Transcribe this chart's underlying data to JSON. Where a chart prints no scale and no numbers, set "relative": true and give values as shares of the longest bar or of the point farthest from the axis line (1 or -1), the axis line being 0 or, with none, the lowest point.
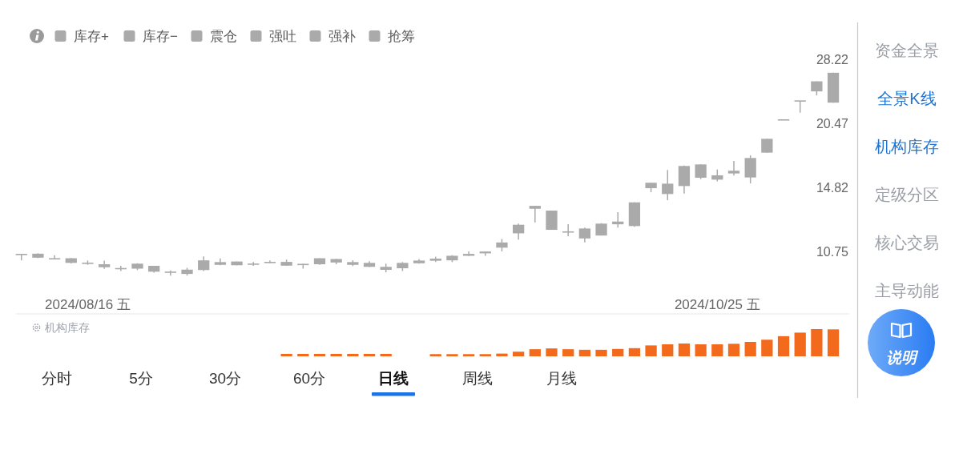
{
  "chart_data": [
    {
      "type": "candlestick",
      "color": "#aaaaaa",
      "log": "y",
      "ylim": [
        7.85,
        34.1
      ],
      "yticks": [
        10.75,
        14.82,
        20.47,
        28.22
      ],
      "categories": [
        null,
        null,
        null,
        null,
        "2024/08/16 五",
        null,
        null,
        null,
        null,
        null,
        null,
        null,
        null,
        null,
        null,
        null,
        null,
        null,
        null,
        null,
        null,
        null,
        null,
        null,
        null,
        null,
        null,
        null,
        null,
        null,
        null,
        null,
        null,
        null,
        null,
        null,
        null,
        null,
        null,
        null,
        null,
        null,
        "2024/10/25 五",
        null,
        null,
        null,
        null,
        null,
        null,
        null
      ],
      "ohlc": [
        [
          10.58,
          10.62,
          10.28,
          10.6
        ],
        [
          10.42,
          10.65,
          10.4,
          10.63
        ],
        [
          10.34,
          10.55,
          10.33,
          10.38
        ],
        [
          10.15,
          10.4,
          10.12,
          10.39
        ],
        [
          10.11,
          10.27,
          10.05,
          10.15
        ],
        [
          9.93,
          10.27,
          9.85,
          10.08
        ],
        [
          9.84,
          10.0,
          9.74,
          9.88
        ],
        [
          9.86,
          10.13,
          9.79,
          10.11
        ],
        [
          9.71,
          10.0,
          9.66,
          10.0
        ],
        [
          9.66,
          9.77,
          9.52,
          9.71
        ],
        [
          9.6,
          9.9,
          9.52,
          9.81
        ],
        [
          9.79,
          10.49,
          9.74,
          10.28
        ],
        [
          10.05,
          10.38,
          10.03,
          10.19
        ],
        [
          10.03,
          10.22,
          10.03,
          10.22
        ],
        [
          10.06,
          10.2,
          10.0,
          10.11
        ],
        [
          10.15,
          10.28,
          10.13,
          10.19
        ],
        [
          10.01,
          10.32,
          10.0,
          10.2
        ],
        [
          10.06,
          10.1,
          9.86,
          10.08
        ],
        [
          10.08,
          10.39,
          10.05,
          10.39
        ],
        [
          10.17,
          10.36,
          10.08,
          10.35
        ],
        [
          10.05,
          10.28,
          9.99,
          10.19
        ],
        [
          9.95,
          10.23,
          9.94,
          10.15
        ],
        [
          9.8,
          10.11,
          9.68,
          9.95
        ],
        [
          9.88,
          10.19,
          9.74,
          10.15
        ],
        [
          10.13,
          10.35,
          10.11,
          10.27
        ],
        [
          10.26,
          10.47,
          10.2,
          10.37
        ],
        [
          10.28,
          10.55,
          10.19,
          10.52
        ],
        [
          10.52,
          10.75,
          10.51,
          10.62
        ],
        [
          10.65,
          10.75,
          10.52,
          10.75
        ],
        [
          10.96,
          11.45,
          10.75,
          11.25
        ],
        [
          11.78,
          12.37,
          11.41,
          12.3
        ],
        [
          13.33,
          13.53,
          12.45,
          13.53
        ],
        [
          11.99,
          13.21,
          11.99,
          13.21
        ],
        [
          11.83,
          12.33,
          11.61,
          11.89
        ],
        [
          11.48,
          12.13,
          11.25,
          12.07
        ],
        [
          11.65,
          12.4,
          11.65,
          12.37
        ],
        [
          12.33,
          13.1,
          12.12,
          12.5
        ],
        [
          12.22,
          13.77,
          12.17,
          13.77
        ],
        [
          14.79,
          15.2,
          14.49,
          15.2
        ],
        [
          14.36,
          16.21,
          13.92,
          15.13
        ],
        [
          14.95,
          16.58,
          14.4,
          16.54
        ],
        [
          15.59,
          16.67,
          15.48,
          16.67
        ],
        [
          15.44,
          16.25,
          15.3,
          15.78
        ],
        [
          15.93,
          16.97,
          15.76,
          16.15
        ],
        [
          15.61,
          17.45,
          15.15,
          17.22
        ],
        [
          17.69,
          18.97,
          17.69,
          18.97
        ],
        [
          20.86,
          20.86,
          20.86,
          20.86
        ],
        [
          22.95,
          22.95,
          21.64,
          22.95
        ],
        [
          24.09,
          25.34,
          23.61,
          25.34
        ],
        [
          22.76,
          26.46,
          22.76,
          26.46
        ]
      ],
      "annotations": [
        "库存+",
        "库存−",
        "震仓",
        "强吐",
        "强补",
        "抢筹",
        "资金全景",
        "全景K线",
        "机构库存",
        "定级分区",
        "核心交易",
        "主导动能",
        "说明"
      ]
    },
    {
      "type": "bar",
      "relative": true,
      "title": "机构库存",
      "color": "#f36a1c",
      "categories": [
        null,
        null,
        null,
        null,
        null,
        null,
        null,
        null,
        null,
        null,
        null,
        null,
        null,
        null,
        null,
        null,
        null,
        null,
        null,
        null,
        null,
        null,
        null,
        null,
        null,
        null,
        null,
        null,
        null,
        null,
        null,
        null,
        null,
        null,
        null,
        null,
        null,
        null,
        null,
        null,
        null,
        null,
        null,
        null,
        null,
        null,
        null,
        null,
        null,
        null
      ],
      "values": [
        null,
        null,
        null,
        null,
        null,
        null,
        null,
        null,
        null,
        null,
        null,
        null,
        null,
        null,
        null,
        null,
        0.09,
        0.09,
        0.09,
        0.09,
        0.09,
        0.09,
        0.09,
        null,
        null,
        0.08,
        0.08,
        0.08,
        0.08,
        0.1,
        0.17,
        0.26,
        0.29,
        0.26,
        0.24,
        0.24,
        0.27,
        0.3,
        0.4,
        0.44,
        0.47,
        0.44,
        0.44,
        0.46,
        0.53,
        0.61,
        0.74,
        0.87,
        1,
        0.99
      ],
      "annotations": [
        "分时",
        "5分",
        "30分",
        "60分",
        "日线",
        "周线",
        "月线"
      ]
    }
  ]
}
